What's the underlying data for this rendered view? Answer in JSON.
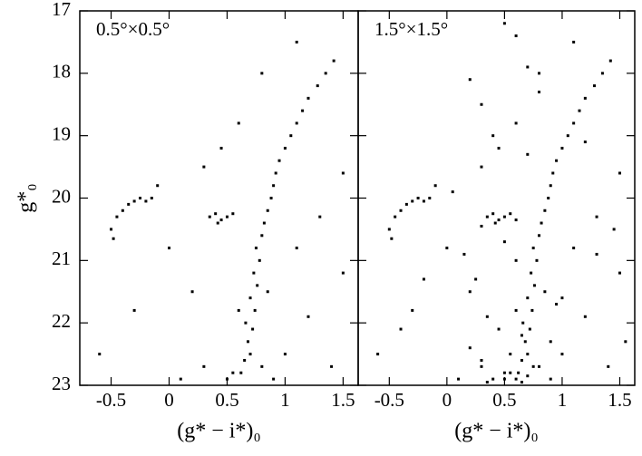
{
  "chart_data": [
    {
      "type": "scatter",
      "annotation": "0.5°×0.5°",
      "x_label": "(g* − i*)₀",
      "y_label": "g*₀",
      "color": "#000000",
      "invert_y": true,
      "xlim": [
        -0.77,
        1.63
      ],
      "ylim": [
        17,
        23
      ],
      "xticks": [
        -0.5,
        0,
        0.5,
        1,
        1.5
      ],
      "yticks": [
        17,
        18,
        19,
        20,
        21,
        22,
        23
      ],
      "x": [
        0.62,
        0.65,
        0.7,
        0.68,
        0.72,
        0.66,
        0.74,
        0.7,
        0.76,
        0.73,
        0.78,
        0.75,
        0.8,
        0.82,
        0.85,
        0.88,
        0.9,
        0.92,
        0.95,
        1.0,
        1.05,
        1.1,
        1.15,
        1.2,
        1.28,
        1.35,
        1.42,
        -0.45,
        -0.4,
        -0.35,
        -0.3,
        -0.25,
        -0.2,
        -0.15,
        -0.5,
        -0.48,
        0.35,
        0.4,
        0.45,
        0.5,
        0.42,
        0.55,
        -0.6,
        -0.3,
        0.1,
        0.2,
        0.3,
        0.5,
        1.0,
        1.2,
        1.4,
        1.5,
        1.1,
        0.3,
        0.6,
        0.8,
        1.5,
        0.0,
        1.3,
        0.45,
        1.1,
        -0.1,
        0.9,
        0.8,
        0.55,
        0.6,
        0.85
      ],
      "y": [
        22.8,
        22.6,
        22.5,
        22.3,
        22.1,
        22.0,
        21.8,
        21.6,
        21.4,
        21.2,
        21.0,
        20.8,
        20.6,
        20.4,
        20.2,
        20.0,
        19.8,
        19.6,
        19.4,
        19.2,
        19.0,
        18.8,
        18.6,
        18.4,
        18.2,
        18.0,
        17.8,
        20.3,
        20.2,
        20.1,
        20.05,
        20.0,
        20.05,
        20.0,
        20.5,
        20.65,
        20.3,
        20.25,
        20.35,
        20.3,
        20.4,
        20.25,
        22.5,
        21.8,
        22.9,
        21.5,
        22.7,
        22.9,
        22.5,
        21.9,
        22.7,
        21.2,
        20.8,
        19.5,
        18.8,
        18.0,
        19.6,
        20.8,
        20.3,
        19.2,
        17.5,
        19.8,
        22.9,
        22.7,
        22.8,
        21.8,
        21.5
      ]
    },
    {
      "type": "scatter",
      "annotation": "1.5°×1.5°",
      "x_label": "(g* − i*)₀",
      "color": "#000000",
      "invert_y": true,
      "xlim": [
        -0.77,
        1.63
      ],
      "ylim": [
        17,
        23
      ],
      "xticks": [
        -0.5,
        0,
        0.5,
        1,
        1.5
      ],
      "yticks": [
        17,
        18,
        19,
        20,
        21,
        22,
        23
      ],
      "x": [
        0.62,
        0.65,
        0.7,
        0.68,
        0.72,
        0.66,
        0.74,
        0.7,
        0.76,
        0.73,
        0.78,
        0.75,
        0.8,
        0.82,
        0.85,
        0.88,
        0.9,
        0.92,
        0.95,
        1.0,
        1.05,
        1.1,
        1.15,
        1.2,
        1.28,
        1.35,
        1.42,
        -0.45,
        -0.4,
        -0.35,
        -0.3,
        -0.25,
        -0.2,
        -0.15,
        -0.5,
        -0.48,
        0.35,
        0.4,
        0.45,
        0.5,
        0.42,
        0.55,
        0.3,
        0.6,
        -0.6,
        -0.3,
        0.1,
        0.2,
        0.3,
        0.5,
        1.0,
        1.2,
        1.4,
        1.5,
        1.1,
        0.3,
        0.6,
        0.8,
        1.5,
        0.0,
        1.3,
        0.45,
        1.1,
        -0.1,
        0.9,
        0.8,
        0.55,
        0.6,
        0.85,
        0.4,
        0.5,
        0.6,
        0.7,
        0.3,
        0.2,
        0.55,
        0.65,
        0.45,
        0.35,
        0.75,
        0.9,
        1.0,
        0.25,
        0.15,
        0.6,
        0.5,
        0.7,
        0.4,
        0.3,
        0.8,
        0.2,
        0.6,
        0.5,
        1.2,
        1.3,
        -0.2,
        -0.4,
        0.05,
        0.95,
        1.45,
        1.55,
        0.7,
        0.35,
        0.65
      ],
      "y": [
        22.8,
        22.6,
        22.5,
        22.3,
        22.1,
        22.0,
        21.8,
        21.6,
        21.4,
        21.2,
        21.0,
        20.8,
        20.6,
        20.4,
        20.2,
        20.0,
        19.8,
        19.6,
        19.4,
        19.2,
        19.0,
        18.8,
        18.6,
        18.4,
        18.2,
        18.0,
        17.8,
        20.3,
        20.2,
        20.1,
        20.05,
        20.0,
        20.05,
        20.0,
        20.5,
        20.65,
        20.3,
        20.25,
        20.35,
        20.3,
        20.4,
        20.25,
        20.45,
        20.35,
        22.5,
        21.8,
        22.9,
        21.5,
        22.7,
        22.9,
        22.5,
        21.9,
        22.7,
        21.2,
        20.8,
        19.5,
        18.8,
        18.0,
        19.6,
        20.8,
        20.3,
        19.2,
        17.5,
        19.8,
        22.9,
        22.7,
        22.8,
        21.8,
        21.5,
        22.9,
        22.8,
        22.9,
        22.85,
        22.6,
        22.4,
        22.5,
        22.2,
        22.1,
        21.9,
        22.7,
        22.3,
        21.6,
        21.3,
        20.9,
        21.0,
        20.7,
        19.3,
        19.0,
        18.5,
        18.3,
        18.1,
        17.4,
        17.2,
        19.1,
        20.9,
        21.3,
        22.1,
        19.9,
        21.7,
        20.5,
        22.3,
        17.9,
        22.95,
        22.95
      ]
    }
  ]
}
